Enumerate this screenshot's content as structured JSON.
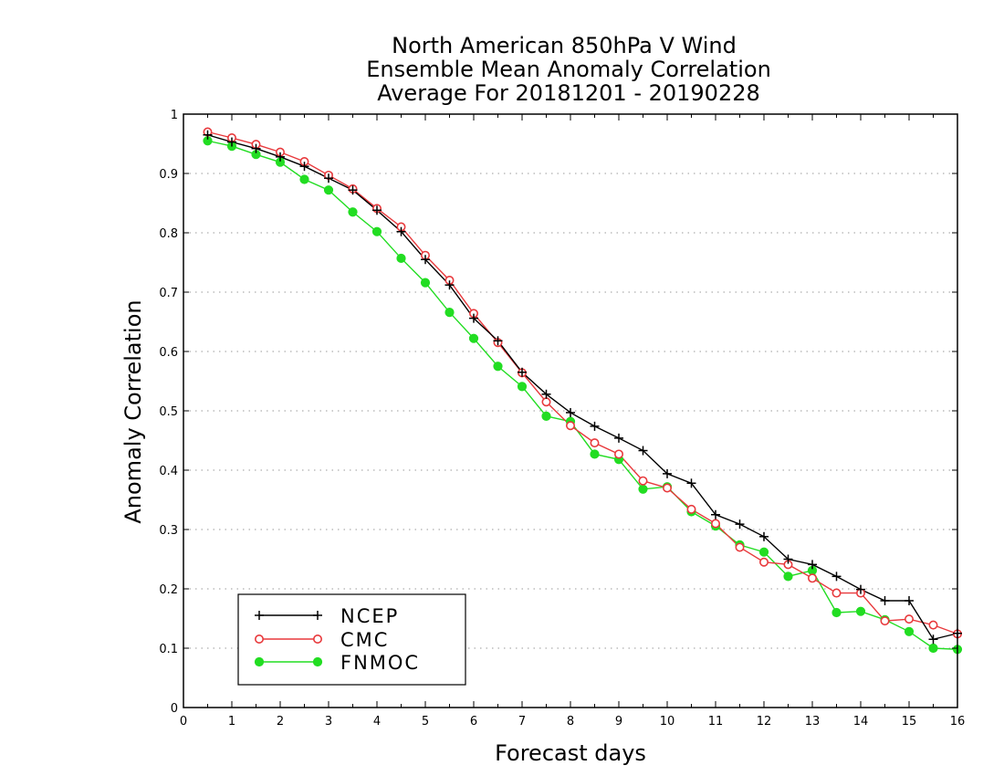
{
  "chart_data": {
    "type": "line",
    "title_lines": [
      "North American 850hPa V Wind",
      "Ensemble Mean Anomaly Correlation",
      "Average For 20181201 - 20190228"
    ],
    "xlabel": "Forecast days",
    "ylabel": "Anomaly Correlation",
    "xlim": [
      0,
      16
    ],
    "ylim": [
      0,
      1
    ],
    "x_ticks": [
      0,
      1,
      2,
      3,
      4,
      5,
      6,
      7,
      8,
      9,
      10,
      11,
      12,
      13,
      14,
      15,
      16
    ],
    "y_ticks": [
      0,
      0.1,
      0.2,
      0.3,
      0.4,
      0.5,
      0.6,
      0.7,
      0.8,
      0.9,
      1
    ],
    "y_tick_labels": [
      "0",
      "0.1",
      "0.2",
      "0.3",
      "0.4",
      "0.5",
      "0.6",
      "0.7",
      "0.8",
      "0.9",
      "1"
    ],
    "grid": "horizontal dotted",
    "legend_position": "bottom-left",
    "x": [
      0.5,
      1,
      1.5,
      2,
      2.5,
      3,
      3.5,
      4,
      4.5,
      5,
      5.5,
      6,
      6.5,
      7,
      7.5,
      8,
      8.5,
      9,
      9.5,
      10,
      10.5,
      11,
      11.5,
      12,
      12.5,
      13,
      13.5,
      14,
      14.5,
      15,
      15.5,
      16
    ],
    "series": [
      {
        "name": "NCEP",
        "color": "#000000",
        "marker": "plus",
        "values": [
          0.965,
          0.953,
          0.942,
          0.928,
          0.912,
          0.892,
          0.872,
          0.838,
          0.802,
          0.755,
          0.712,
          0.656,
          0.618,
          0.565,
          0.528,
          0.497,
          0.474,
          0.454,
          0.433,
          0.394,
          0.378,
          0.325,
          0.309,
          0.288,
          0.25,
          0.241,
          0.221,
          0.199,
          0.18,
          0.18,
          0.115,
          0.125
        ]
      },
      {
        "name": "CMC",
        "color": "#e8393c",
        "marker": "open-circle",
        "values": [
          0.97,
          0.96,
          0.949,
          0.936,
          0.92,
          0.897,
          0.874,
          0.841,
          0.81,
          0.762,
          0.72,
          0.664,
          0.615,
          0.564,
          0.515,
          0.475,
          0.446,
          0.427,
          0.382,
          0.37,
          0.334,
          0.31,
          0.27,
          0.245,
          0.241,
          0.218,
          0.193,
          0.193,
          0.146,
          0.149,
          0.139,
          0.124
        ]
      },
      {
        "name": "FNMOC",
        "color": "#22dd22",
        "marker": "filled-circle",
        "values": [
          0.955,
          0.946,
          0.932,
          0.919,
          0.89,
          0.872,
          0.835,
          0.802,
          0.757,
          0.716,
          0.666,
          0.622,
          0.575,
          0.541,
          0.491,
          0.482,
          0.427,
          0.418,
          0.368,
          0.372,
          0.33,
          0.306,
          0.274,
          0.262,
          0.221,
          0.231,
          0.16,
          0.162,
          0.148,
          0.128,
          0.1,
          0.098
        ]
      }
    ]
  }
}
